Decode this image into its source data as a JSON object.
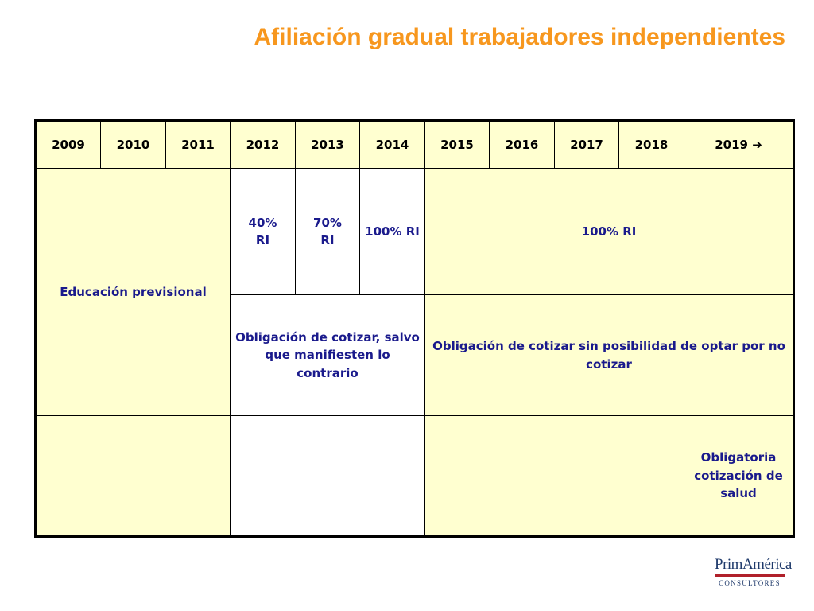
{
  "title": "Afiliación gradual trabajadores independientes",
  "years": [
    "2009",
    "2010",
    "2011",
    "2012",
    "2013",
    "2014",
    "2015",
    "2016",
    "2017",
    "2018",
    "2019"
  ],
  "arrow_glyph": "➔",
  "rows": {
    "education": "Educación previsional",
    "pct_2012": "40%",
    "pct_2012_unit": "RI",
    "pct_2013": "70%",
    "pct_2013_unit": "RI",
    "pct_2014": "100% RI",
    "pct_2015_on": "100% RI",
    "obligation_optout": "Obligación de cotizar, salvo que manifiesten lo contrario",
    "obligation_no_optout": "Obligación de cotizar sin posibilidad de optar por no cotizar",
    "health": "Obligatoria cotización de salud"
  },
  "logo": {
    "main": "PrimAmérica",
    "sub": "CONSULTORES"
  },
  "colors": {
    "title": "#F7971E",
    "cell_yellow": "#FFFFD0",
    "cell_text": "#1a1a8c",
    "logo_bar": "#b0202a"
  }
}
